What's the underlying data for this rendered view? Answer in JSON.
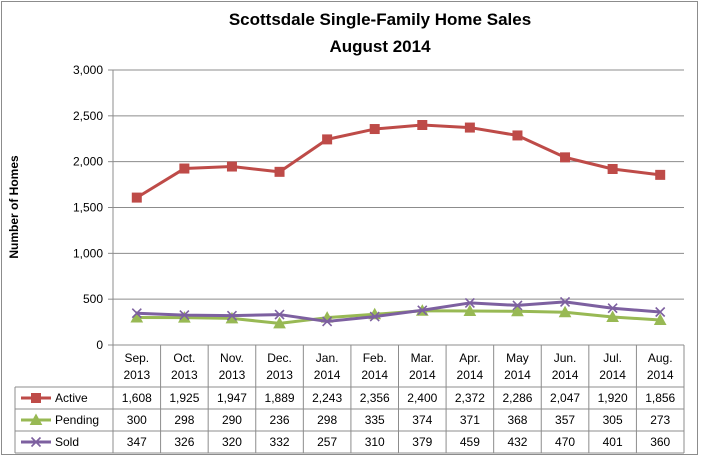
{
  "chart_data": {
    "type": "line",
    "title": [
      "Scottsdale Single-Family Home Sales",
      "August 2014"
    ],
    "ylabel": "Number of Homes",
    "ylim": [
      0,
      3000
    ],
    "yticks": [
      "0",
      "500",
      "1,000",
      "1,500",
      "2,000",
      "2,500",
      "3,000"
    ],
    "ytick_values": [
      0,
      500,
      1000,
      1500,
      2000,
      2500,
      3000
    ],
    "grid": true,
    "legend": "data-table",
    "categories": [
      [
        "Sep.",
        "2013"
      ],
      [
        "Oct.",
        "2013"
      ],
      [
        "Nov.",
        "2013"
      ],
      [
        "Dec.",
        "2013"
      ],
      [
        "Jan.",
        "2014"
      ],
      [
        "Feb.",
        "2014"
      ],
      [
        "Mar.",
        "2014"
      ],
      [
        "Apr.",
        "2014"
      ],
      [
        "May",
        "2014"
      ],
      [
        "Jun.",
        "2014"
      ],
      [
        "Jul.",
        "2014"
      ],
      [
        "Aug.",
        "2014"
      ]
    ],
    "series": [
      {
        "name": "Active",
        "color": "#be4b48",
        "marker": "square",
        "values": [
          1608,
          1925,
          1947,
          1889,
          2243,
          2356,
          2400,
          2372,
          2286,
          2047,
          1920,
          1856
        ],
        "labels": [
          "1,608",
          "1,925",
          "1,947",
          "1,889",
          "2,243",
          "2,356",
          "2,400",
          "2,372",
          "2,286",
          "2,047",
          "1,920",
          "1,856"
        ]
      },
      {
        "name": "Pending",
        "color": "#98b954",
        "marker": "triangle",
        "values": [
          300,
          298,
          290,
          236,
          298,
          335,
          374,
          371,
          368,
          357,
          305,
          273
        ],
        "labels": [
          "300",
          "298",
          "290",
          "236",
          "298",
          "335",
          "374",
          "371",
          "368",
          "357",
          "305",
          "273"
        ]
      },
      {
        "name": "Sold",
        "color": "#7d60a0",
        "marker": "x",
        "values": [
          347,
          326,
          320,
          332,
          257,
          310,
          379,
          459,
          432,
          470,
          401,
          360
        ],
        "labels": [
          "347",
          "326",
          "320",
          "332",
          "257",
          "310",
          "379",
          "459",
          "432",
          "470",
          "401",
          "360"
        ]
      }
    ]
  }
}
